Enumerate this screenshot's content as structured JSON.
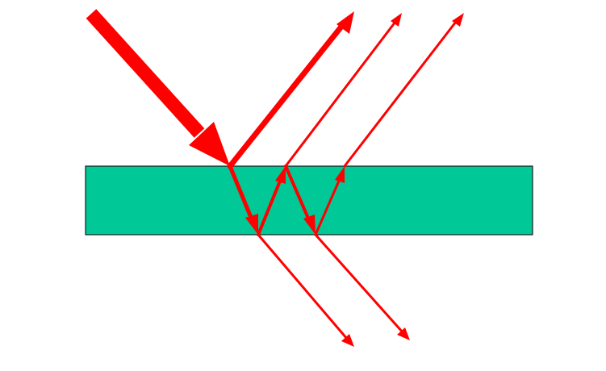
{
  "diagram": {
    "slab_color": "#00C896",
    "slab_border_color": "#1a1a1a",
    "ray_color": "#FF0000",
    "background_color": "#FFFFFF"
  }
}
